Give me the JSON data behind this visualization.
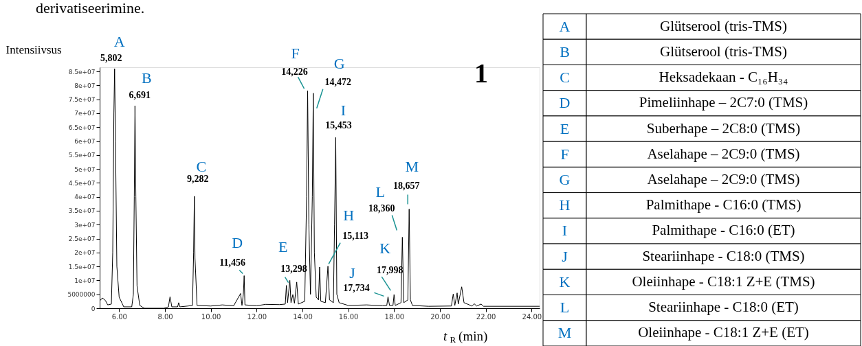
{
  "chart_data": [
    {
      "type": "line",
      "ylabel": "Intensiivsus",
      "xlabel": "t$_{R}$ (min)",
      "color": "#000000",
      "x": [
        5.16,
        5.27,
        5.4,
        5.5,
        5.66,
        5.72,
        5.77,
        5.802,
        5.84,
        5.9,
        6.0,
        6.2,
        6.55,
        6.62,
        6.66,
        6.691,
        6.73,
        6.78,
        6.9,
        7.1,
        7.95,
        8.15,
        8.22,
        8.3,
        8.55,
        8.6,
        8.65,
        9.0,
        9.2,
        9.25,
        9.282,
        9.31,
        9.4,
        10.0,
        10.5,
        11.0,
        11.3,
        11.36,
        11.42,
        11.456,
        11.49,
        12.0,
        12.4,
        13.0,
        13.25,
        13.298,
        13.35,
        13.45,
        13.5,
        13.58,
        13.65,
        13.75,
        13.82,
        14.1,
        14.18,
        14.226,
        14.28,
        14.35,
        14.43,
        14.472,
        14.52,
        14.6,
        14.7,
        14.75,
        14.8,
        15.0,
        15.113,
        15.18,
        15.35,
        15.4,
        15.453,
        15.5,
        15.6,
        16.0,
        16.8,
        17.5,
        17.68,
        17.734,
        17.8,
        17.95,
        17.998,
        18.05,
        18.3,
        18.36,
        18.42,
        18.6,
        18.657,
        18.71,
        18.8,
        19.5,
        20.5,
        20.58,
        20.65,
        20.75,
        20.8,
        20.95,
        21.05,
        21.4,
        21.5,
        21.6,
        21.8,
        21.9,
        23.0,
        24.35
      ],
      "values": [
        2700000,
        3700000,
        2800000,
        1200000,
        1500000,
        20000000,
        70000000,
        86000000,
        60000000,
        15000000,
        4000000,
        500000,
        500000,
        5000000,
        40000000,
        72700000,
        40000000,
        8000000,
        1000000,
        0,
        0,
        500000,
        4100000,
        500000,
        500000,
        2000000,
        500000,
        800000,
        1000000,
        20000000,
        40200000,
        18000000,
        1000000,
        800000,
        1200000,
        900000,
        5300000,
        1000000,
        5000000,
        11700000,
        1200000,
        900000,
        1400000,
        1300000,
        1500000,
        8200000,
        2000000,
        10000000,
        2000000,
        4900000,
        1800000,
        9400000,
        1500000,
        2500000,
        40000000,
        78100000,
        30000000,
        5000000,
        40000000,
        77200000,
        20000000,
        4000000,
        3000000,
        14800000,
        2500000,
        2000000,
        15100000,
        3000000,
        2000000,
        30000000,
        61300000,
        5000000,
        2000000,
        1000000,
        1200000,
        900000,
        1000000,
        4100000,
        1000000,
        1000000,
        4900000,
        1000000,
        2000000,
        25500000,
        2000000,
        3000000,
        35600000,
        3000000,
        1000000,
        700000,
        800000,
        5100000,
        1000000,
        5500000,
        1500000,
        7700000,
        2000000,
        800000,
        1600000,
        800000,
        1500000,
        700000,
        700000,
        700000
      ],
      "xlim": [
        5.15,
        24.35
      ],
      "ylim": [
        0,
        86500000
      ],
      "xticks": [
        {
          "value": 6,
          "label": "6.00"
        },
        {
          "value": 8,
          "label": "8.00"
        },
        {
          "value": 10,
          "label": "10.00"
        },
        {
          "value": 12,
          "label": "12.00"
        },
        {
          "value": 14,
          "label": "14.00"
        },
        {
          "value": 16,
          "label": "16.00"
        },
        {
          "value": 18,
          "label": "18.00"
        },
        {
          "value": 20,
          "label": "20.00"
        },
        {
          "value": 22,
          "label": "22.00"
        },
        {
          "value": 24,
          "label": "24.00"
        }
      ],
      "yticks": [
        0,
        5000000,
        {
          "value": 10000000,
          "label": "1e+07"
        },
        {
          "value": 15000000,
          "label": "1.5e+07"
        },
        {
          "value": 20000000,
          "label": "2e+07"
        },
        {
          "value": 25000000,
          "label": "2.5e+07"
        },
        {
          "value": 30000000,
          "label": "3e+07"
        },
        {
          "value": 35000000,
          "label": "3.5e+07"
        },
        {
          "value": 40000000,
          "label": "4e+07"
        },
        {
          "value": 45000000,
          "label": "4.5e+07"
        },
        {
          "value": 50000000,
          "label": "5e+07"
        },
        {
          "value": 55000000,
          "label": "5.5e+07"
        },
        {
          "value": 60000000,
          "label": "6e+07"
        },
        {
          "value": 65000000,
          "label": "6.5e+07"
        },
        {
          "value": 70000000,
          "label": "7e+07"
        },
        {
          "value": 75000000,
          "label": "7.5e+07"
        },
        {
          "value": 80000000,
          "label": "8e+07"
        },
        {
          "value": 85000000,
          "label": "8.5e+07"
        }
      ],
      "annotations": [
        "derivatiseerimine.",
        "1",
        {
          "text": "A",
          "x": 5.802,
          "y": 86000000
        },
        {
          "text": "5,802",
          "x": 5.802,
          "y": 86000000
        },
        {
          "text": "B",
          "x": 6.691,
          "y": 72700000
        },
        {
          "text": "6,691",
          "x": 6.691,
          "y": 72700000
        },
        {
          "text": "C",
          "x": 9.282,
          "y": 40200000
        },
        {
          "text": "9,282",
          "x": 9.282,
          "y": 40200000
        },
        {
          "text": "D",
          "x": 11.456,
          "y": 11700000
        },
        {
          "text": "11,456",
          "x": 11.456,
          "y": 11700000
        },
        {
          "text": "E",
          "x": 13.298,
          "y": 8200000
        },
        {
          "text": "13,298",
          "x": 13.298,
          "y": 8200000
        },
        {
          "text": "F",
          "x": 14.226,
          "y": 78100000
        },
        {
          "text": "14,226",
          "x": 14.226,
          "y": 78100000
        },
        {
          "text": "G",
          "x": 14.472,
          "y": 77200000
        },
        {
          "text": "14,472",
          "x": 14.472,
          "y": 77200000
        },
        {
          "text": "H",
          "x": 15.113,
          "y": 15100000
        },
        {
          "text": "15,113",
          "x": 15.113,
          "y": 15100000
        },
        {
          "text": "I",
          "x": 15.453,
          "y": 61300000
        },
        {
          "text": "15,453",
          "x": 15.453,
          "y": 61300000
        },
        {
          "text": "J",
          "x": 17.734,
          "y": 4100000
        },
        {
          "text": "17,734",
          "x": 17.734,
          "y": 4100000
        },
        {
          "text": "K",
          "x": 17.998,
          "y": 4900000
        },
        {
          "text": "17,998",
          "x": 17.998,
          "y": 4900000
        },
        {
          "text": "L",
          "x": 18.36,
          "y": 25500000
        },
        {
          "text": "18,360",
          "x": 18.36,
          "y": 25500000
        },
        {
          "text": "M",
          "x": 18.657,
          "y": 35600000
        },
        {
          "text": "18,657",
          "x": 18.657,
          "y": 35600000
        }
      ]
    },
    {
      "type": "other",
      "categories": [
        "A",
        "B",
        "C",
        "D",
        "E",
        "F",
        "G",
        "H",
        "I",
        "J",
        "K",
        "L",
        "M"
      ],
      "annotations": [
        "Glütserool (tris-TMS)",
        "Glütserool (tris-TMS)",
        "Heksadekaan - C₁₆H₃₄",
        "Pimeliinhape – 2C7:0 (TMS)",
        "Suberhape – 2C8:0 (TMS)",
        "Aselahape – 2C9:0 (TMS)",
        "Aselahape – 2C9:0 (TMS)",
        "Palmithape - C16:0 (TMS)",
        "Palmithape - C16:0 (ET)",
        "Steariinhape - C18:0 (TMS)",
        "Oleiinhape - C18:1 Z+E (TMS)",
        "Steariinhape - C18:0 (ET)",
        "Oleiinhape - C18:1 Z+E (ET)"
      ]
    }
  ]
}
